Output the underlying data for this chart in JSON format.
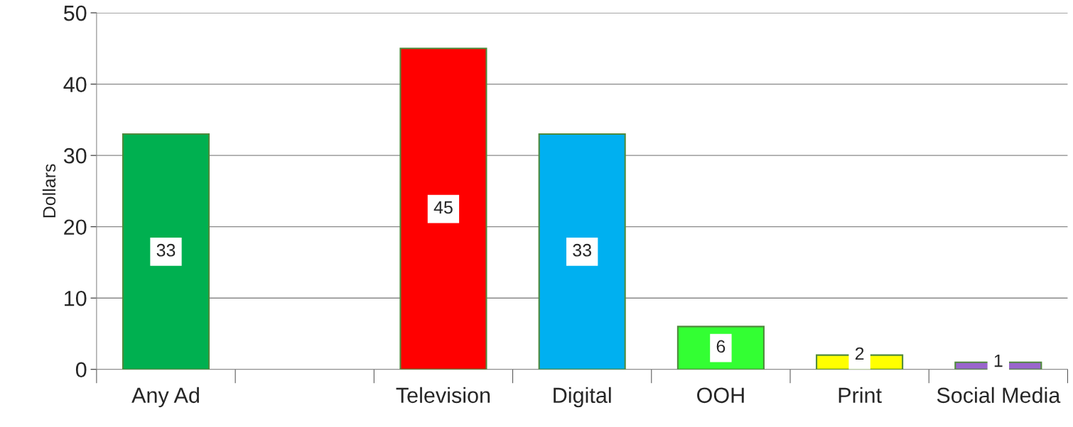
{
  "chart_data": {
    "type": "bar",
    "ylabel": "Dollars",
    "categories": [
      "Any Ad",
      null,
      "Television",
      "Digital",
      "OOH",
      "Print",
      "Social Media"
    ],
    "values": [
      33,
      null,
      45,
      33,
      6,
      2,
      1
    ],
    "colors": [
      "#00b050",
      null,
      "#ff0000",
      "#00b0f0",
      "#33ff33",
      "#ffff00",
      "#9966cc"
    ],
    "ylim": [
      0,
      50
    ],
    "yticks": [
      0,
      10,
      20,
      30,
      40,
      50
    ],
    "grid": "y",
    "data_labels": true
  }
}
